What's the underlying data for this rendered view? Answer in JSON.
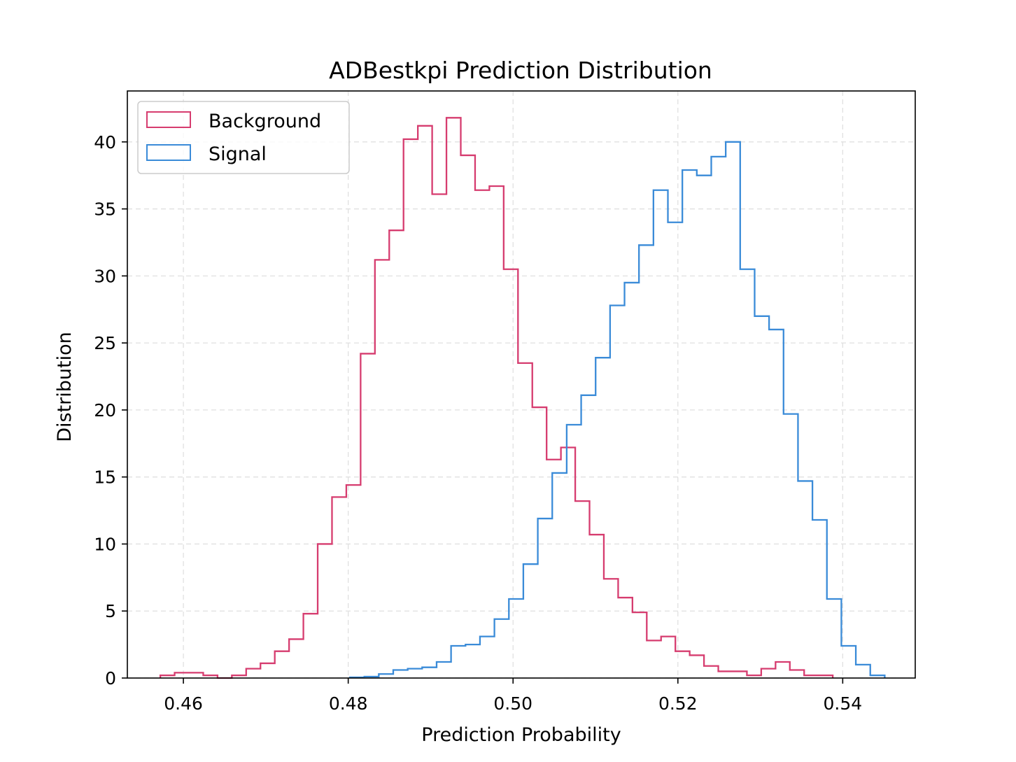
{
  "chart_data": {
    "type": "histogram-step",
    "title": "ADBestkpi Prediction Distribution",
    "xlabel": "Prediction Probability",
    "ylabel": "Distribution",
    "xlim": [
      0.4532,
      0.5488
    ],
    "ylim": [
      0,
      43.8
    ],
    "xticks": [
      0.46,
      0.48,
      0.5,
      0.52,
      0.54
    ],
    "xtick_labels": [
      "0.46",
      "0.48",
      "0.50",
      "0.52",
      "0.54"
    ],
    "yticks": [
      0,
      5,
      10,
      15,
      20,
      25,
      30,
      35,
      40
    ],
    "ytick_labels": [
      "0",
      "5",
      "10",
      "15",
      "20",
      "25",
      "30",
      "35",
      "40"
    ],
    "grid": true,
    "legend_position": "top-left",
    "series": [
      {
        "name": "Background",
        "color": "#d63c6f",
        "bin_start": 0.4572,
        "bin_width": 0.001736,
        "values": [
          0.2,
          0.4,
          0.4,
          0.2,
          0.0,
          0.2,
          0.7,
          1.1,
          2.0,
          2.9,
          4.8,
          10.0,
          13.5,
          14.4,
          24.2,
          31.2,
          33.4,
          40.2,
          41.2,
          36.1,
          41.8,
          39.0,
          36.4,
          36.7,
          30.5,
          23.5,
          20.2,
          16.3,
          17.2,
          13.2,
          10.7,
          7.4,
          6.0,
          4.9,
          2.8,
          3.1,
          2.0,
          1.7,
          0.9,
          0.5,
          0.5,
          0.2,
          0.7,
          1.2,
          0.6,
          0.2,
          0.2
        ]
      },
      {
        "name": "Signal",
        "color": "#3a8bd8",
        "bin_start": 0.4802,
        "bin_width": 0.001754,
        "values": [
          0.05,
          0.1,
          0.3,
          0.6,
          0.7,
          0.8,
          1.2,
          2.4,
          2.5,
          3.1,
          4.4,
          5.9,
          8.5,
          11.9,
          15.3,
          18.9,
          21.1,
          23.9,
          27.8,
          29.5,
          32.3,
          36.4,
          34.0,
          37.9,
          37.5,
          38.9,
          40.0,
          30.5,
          27.0,
          26.0,
          19.7,
          14.7,
          11.8,
          5.9,
          2.4,
          1.0,
          0.2
        ]
      }
    ]
  }
}
